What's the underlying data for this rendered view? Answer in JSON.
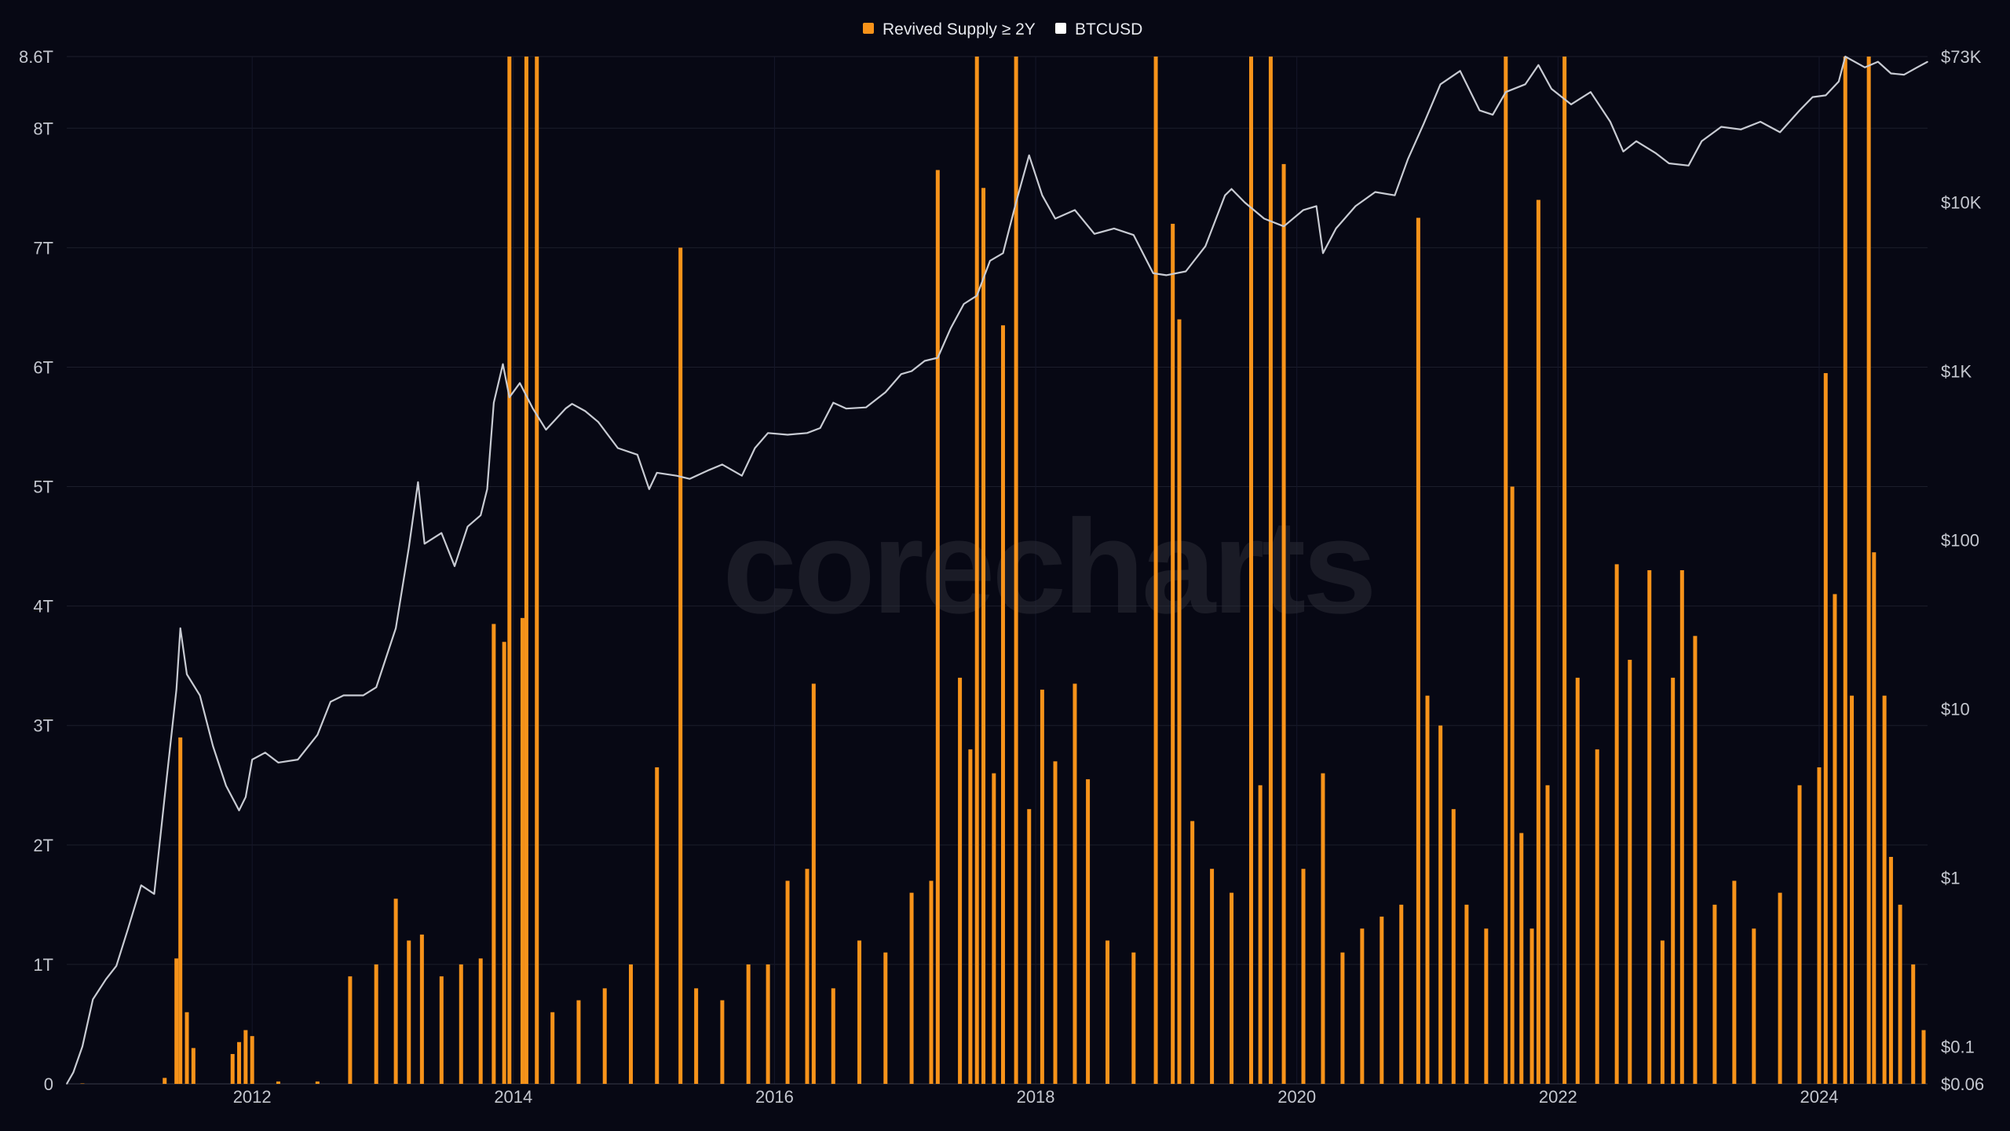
{
  "watermark": "corecharts",
  "legend": [
    {
      "label": "Revived Supply ≥ 2Y",
      "color": "#f7931a"
    },
    {
      "label": "BTCUSD",
      "color": "#ffffff"
    }
  ],
  "chart_data": {
    "type": "bar",
    "legend_placement": "top-center",
    "grid": true,
    "x_axis": {
      "ticks": [
        "2012",
        "2014",
        "2016",
        "2018",
        "2020",
        "2022",
        "2024"
      ],
      "range": [
        2010.58,
        2024.83
      ]
    },
    "y_left": {
      "ticks": [
        "0",
        "1T",
        "2T",
        "3T",
        "4T",
        "5T",
        "6T",
        "7T",
        "8T",
        "8.6T"
      ],
      "range": [
        0,
        8.6
      ],
      "unit": "T"
    },
    "y_right": {
      "scale": "log",
      "ticks": [
        "$0.06",
        "$0.1",
        "$1",
        "$10",
        "$100",
        "$1K",
        "$10K",
        "$73K"
      ],
      "range": [
        0.06,
        73000
      ]
    },
    "series": [
      {
        "name": "Revived Supply ≥ 2Y",
        "type": "bar",
        "axis": "left",
        "color": "#f7931a",
        "points": [
          [
            2010.7,
            0.0
          ],
          [
            2011.33,
            0.05
          ],
          [
            2011.42,
            1.05
          ],
          [
            2011.45,
            2.9
          ],
          [
            2011.5,
            0.6
          ],
          [
            2011.55,
            0.3
          ],
          [
            2011.85,
            0.25
          ],
          [
            2011.9,
            0.35
          ],
          [
            2011.95,
            0.45
          ],
          [
            2012.0,
            0.4
          ],
          [
            2012.2,
            0.02
          ],
          [
            2012.5,
            0.02
          ],
          [
            2012.75,
            0.9
          ],
          [
            2012.95,
            1.0
          ],
          [
            2013.1,
            1.55
          ],
          [
            2013.2,
            1.2
          ],
          [
            2013.3,
            1.25
          ],
          [
            2013.45,
            0.9
          ],
          [
            2013.6,
            1.0
          ],
          [
            2013.75,
            1.05
          ],
          [
            2013.85,
            3.85
          ],
          [
            2013.93,
            3.7
          ],
          [
            2013.97,
            8.6
          ],
          [
            2014.07,
            3.9
          ],
          [
            2014.1,
            8.6
          ],
          [
            2014.18,
            8.6
          ],
          [
            2014.3,
            0.6
          ],
          [
            2014.5,
            0.7
          ],
          [
            2014.7,
            0.8
          ],
          [
            2014.9,
            1.0
          ],
          [
            2015.1,
            2.65
          ],
          [
            2015.28,
            7.0
          ],
          [
            2015.4,
            0.8
          ],
          [
            2015.6,
            0.7
          ],
          [
            2015.8,
            1.0
          ],
          [
            2015.95,
            1.0
          ],
          [
            2016.1,
            1.7
          ],
          [
            2016.25,
            1.8
          ],
          [
            2016.3,
            3.35
          ],
          [
            2016.45,
            0.8
          ],
          [
            2016.65,
            1.2
          ],
          [
            2016.85,
            1.1
          ],
          [
            2017.05,
            1.6
          ],
          [
            2017.2,
            1.7
          ],
          [
            2017.25,
            7.65
          ],
          [
            2017.42,
            3.4
          ],
          [
            2017.5,
            2.8
          ],
          [
            2017.55,
            8.6
          ],
          [
            2017.6,
            7.5
          ],
          [
            2017.68,
            2.6
          ],
          [
            2017.75,
            6.35
          ],
          [
            2017.85,
            8.6
          ],
          [
            2017.95,
            2.3
          ],
          [
            2018.05,
            3.3
          ],
          [
            2018.15,
            2.7
          ],
          [
            2018.3,
            3.35
          ],
          [
            2018.4,
            2.55
          ],
          [
            2018.55,
            1.2
          ],
          [
            2018.75,
            1.1
          ],
          [
            2018.92,
            8.6
          ],
          [
            2019.05,
            7.2
          ],
          [
            2019.1,
            6.4
          ],
          [
            2019.2,
            2.2
          ],
          [
            2019.35,
            1.8
          ],
          [
            2019.5,
            1.6
          ],
          [
            2019.65,
            8.6
          ],
          [
            2019.72,
            2.5
          ],
          [
            2019.8,
            8.6
          ],
          [
            2019.9,
            7.7
          ],
          [
            2020.05,
            1.8
          ],
          [
            2020.2,
            2.6
          ],
          [
            2020.35,
            1.1
          ],
          [
            2020.5,
            1.3
          ],
          [
            2020.65,
            1.4
          ],
          [
            2020.8,
            1.5
          ],
          [
            2020.93,
            7.25
          ],
          [
            2021.0,
            3.25
          ],
          [
            2021.1,
            3.0
          ],
          [
            2021.2,
            2.3
          ],
          [
            2021.3,
            1.5
          ],
          [
            2021.45,
            1.3
          ],
          [
            2021.6,
            8.6
          ],
          [
            2021.65,
            5.0
          ],
          [
            2021.72,
            2.1
          ],
          [
            2021.8,
            1.3
          ],
          [
            2021.85,
            7.4
          ],
          [
            2021.92,
            2.5
          ],
          [
            2022.05,
            8.6
          ],
          [
            2022.15,
            3.4
          ],
          [
            2022.3,
            2.8
          ],
          [
            2022.45,
            4.35
          ],
          [
            2022.55,
            3.55
          ],
          [
            2022.7,
            4.3
          ],
          [
            2022.8,
            1.2
          ],
          [
            2022.88,
            3.4
          ],
          [
            2022.95,
            4.3
          ],
          [
            2023.05,
            3.75
          ],
          [
            2023.2,
            1.5
          ],
          [
            2023.35,
            1.7
          ],
          [
            2023.5,
            1.3
          ],
          [
            2023.7,
            1.6
          ],
          [
            2023.85,
            2.5
          ],
          [
            2024.0,
            2.65
          ],
          [
            2024.05,
            5.95
          ],
          [
            2024.12,
            4.1
          ],
          [
            2024.2,
            8.6
          ],
          [
            2024.25,
            3.25
          ],
          [
            2024.38,
            8.6
          ],
          [
            2024.42,
            4.45
          ],
          [
            2024.5,
            3.25
          ],
          [
            2024.55,
            1.9
          ],
          [
            2024.62,
            1.5
          ],
          [
            2024.72,
            1.0
          ],
          [
            2024.8,
            0.45
          ]
        ]
      },
      {
        "name": "BTCUSD",
        "type": "line",
        "axis": "right",
        "color": "#c8cbd3",
        "points": [
          [
            2010.58,
            0.06
          ],
          [
            2010.63,
            0.07
          ],
          [
            2010.7,
            0.1
          ],
          [
            2010.78,
            0.19
          ],
          [
            2010.88,
            0.25
          ],
          [
            2010.96,
            0.3
          ],
          [
            2011.05,
            0.5
          ],
          [
            2011.15,
            0.9
          ],
          [
            2011.25,
            0.8
          ],
          [
            2011.33,
            3.0
          ],
          [
            2011.42,
            13.0
          ],
          [
            2011.45,
            30.0
          ],
          [
            2011.5,
            16.0
          ],
          [
            2011.6,
            12.0
          ],
          [
            2011.7,
            6.0
          ],
          [
            2011.8,
            3.5
          ],
          [
            2011.9,
            2.5
          ],
          [
            2011.95,
            3.0
          ],
          [
            2012.0,
            5.0
          ],
          [
            2012.1,
            5.5
          ],
          [
            2012.2,
            4.8
          ],
          [
            2012.35,
            5.0
          ],
          [
            2012.5,
            7.0
          ],
          [
            2012.6,
            11.0
          ],
          [
            2012.7,
            12.0
          ],
          [
            2012.85,
            12.0
          ],
          [
            2012.95,
            13.4
          ],
          [
            2013.1,
            30.0
          ],
          [
            2013.2,
            90.0
          ],
          [
            2013.27,
            220.0
          ],
          [
            2013.32,
            95.0
          ],
          [
            2013.45,
            110.0
          ],
          [
            2013.55,
            70.0
          ],
          [
            2013.65,
            120.0
          ],
          [
            2013.75,
            140.0
          ],
          [
            2013.8,
            200.0
          ],
          [
            2013.85,
            650.0
          ],
          [
            2013.92,
            1100.0
          ],
          [
            2013.97,
            700.0
          ],
          [
            2014.05,
            850.0
          ],
          [
            2014.15,
            600.0
          ],
          [
            2014.25,
            450.0
          ],
          [
            2014.4,
            600.0
          ],
          [
            2014.45,
            640.0
          ],
          [
            2014.55,
            580.0
          ],
          [
            2014.65,
            500.0
          ],
          [
            2014.8,
            350.0
          ],
          [
            2014.95,
            320.0
          ],
          [
            2015.04,
            200.0
          ],
          [
            2015.1,
            250.0
          ],
          [
            2015.25,
            240.0
          ],
          [
            2015.35,
            230.0
          ],
          [
            2015.5,
            260.0
          ],
          [
            2015.6,
            280.0
          ],
          [
            2015.75,
            240.0
          ],
          [
            2015.85,
            350.0
          ],
          [
            2015.95,
            430.0
          ],
          [
            2016.1,
            420.0
          ],
          [
            2016.25,
            430.0
          ],
          [
            2016.35,
            460.0
          ],
          [
            2016.45,
            650.0
          ],
          [
            2016.55,
            600.0
          ],
          [
            2016.7,
            610.0
          ],
          [
            2016.85,
            750.0
          ],
          [
            2016.97,
            960.0
          ],
          [
            2017.05,
            1000.0
          ],
          [
            2017.15,
            1150.0
          ],
          [
            2017.25,
            1200.0
          ],
          [
            2017.35,
            1800.0
          ],
          [
            2017.45,
            2500.0
          ],
          [
            2017.55,
            2800.0
          ],
          [
            2017.65,
            4500.0
          ],
          [
            2017.75,
            5000.0
          ],
          [
            2017.85,
            10000.0
          ],
          [
            2017.95,
            19000.0
          ],
          [
            2018.05,
            11000.0
          ],
          [
            2018.15,
            8000.0
          ],
          [
            2018.3,
            9000.0
          ],
          [
            2018.45,
            6500.0
          ],
          [
            2018.6,
            7000.0
          ],
          [
            2018.75,
            6400.0
          ],
          [
            2018.9,
            3800.0
          ],
          [
            2019.0,
            3700.0
          ],
          [
            2019.15,
            3900.0
          ],
          [
            2019.3,
            5500.0
          ],
          [
            2019.45,
            11000.0
          ],
          [
            2019.5,
            12000.0
          ],
          [
            2019.6,
            10000.0
          ],
          [
            2019.75,
            8000.0
          ],
          [
            2019.9,
            7200.0
          ],
          [
            2020.05,
            9000.0
          ],
          [
            2020.15,
            9500.0
          ],
          [
            2020.2,
            5000.0
          ],
          [
            2020.3,
            7000.0
          ],
          [
            2020.45,
            9500.0
          ],
          [
            2020.6,
            11500.0
          ],
          [
            2020.75,
            11000.0
          ],
          [
            2020.85,
            18000.0
          ],
          [
            2020.97,
            29000.0
          ],
          [
            2021.1,
            50000.0
          ],
          [
            2021.25,
            60000.0
          ],
          [
            2021.4,
            35000.0
          ],
          [
            2021.5,
            33000.0
          ],
          [
            2021.6,
            45000.0
          ],
          [
            2021.75,
            50000.0
          ],
          [
            2021.85,
            65000.0
          ],
          [
            2021.95,
            47000.0
          ],
          [
            2022.1,
            38000.0
          ],
          [
            2022.25,
            45000.0
          ],
          [
            2022.4,
            30000.0
          ],
          [
            2022.5,
            20000.0
          ],
          [
            2022.6,
            23000.0
          ],
          [
            2022.75,
            19500.0
          ],
          [
            2022.85,
            17000.0
          ],
          [
            2023.0,
            16500.0
          ],
          [
            2023.1,
            23000.0
          ],
          [
            2023.25,
            28000.0
          ],
          [
            2023.4,
            27000.0
          ],
          [
            2023.55,
            30000.0
          ],
          [
            2023.7,
            26000.0
          ],
          [
            2023.85,
            35000.0
          ],
          [
            2023.95,
            42000.0
          ],
          [
            2024.05,
            43000.0
          ],
          [
            2024.15,
            52000.0
          ],
          [
            2024.2,
            73000.0
          ],
          [
            2024.35,
            63000.0
          ],
          [
            2024.45,
            68000.0
          ],
          [
            2024.55,
            58000.0
          ],
          [
            2024.65,
            57000.0
          ],
          [
            2024.75,
            63000.0
          ],
          [
            2024.83,
            68000.0
          ]
        ]
      }
    ]
  }
}
